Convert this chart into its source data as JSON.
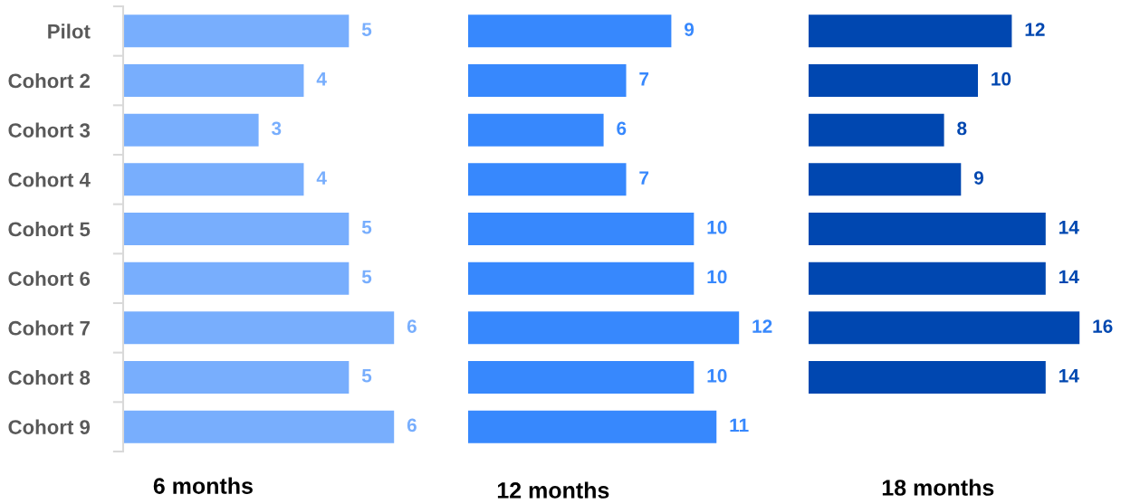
{
  "chart_data": [
    {
      "type": "bar",
      "orientation": "horizontal",
      "categories": [
        "Pilot",
        "Cohort 2",
        "Cohort 3",
        "Cohort 4",
        "Cohort 5",
        "Cohort 6",
        "Cohort 7",
        "Cohort 8",
        "Cohort 9"
      ],
      "values": [
        5,
        4,
        3,
        4,
        5,
        5,
        6,
        5,
        6
      ],
      "color": "#78aefd",
      "data_labels": true,
      "xlabel": "6 months",
      "tick_labels": "y"
    },
    {
      "type": "bar",
      "orientation": "horizontal",
      "categories": [
        null,
        null,
        null,
        null,
        null,
        null,
        null,
        null,
        null
      ],
      "values": [
        9,
        7,
        6,
        7,
        10,
        10,
        12,
        10,
        11
      ],
      "color": "#3788fd",
      "data_labels": true,
      "xlabel": "12 months"
    },
    {
      "type": "bar",
      "orientation": "horizontal",
      "categories": [
        null,
        null,
        null,
        null,
        null,
        null,
        null,
        null,
        null
      ],
      "values": [
        12,
        10,
        8,
        9,
        14,
        14,
        16,
        14,
        null
      ],
      "color": "#0047b0",
      "data_labels": true,
      "xlabel": "18 months"
    }
  ]
}
